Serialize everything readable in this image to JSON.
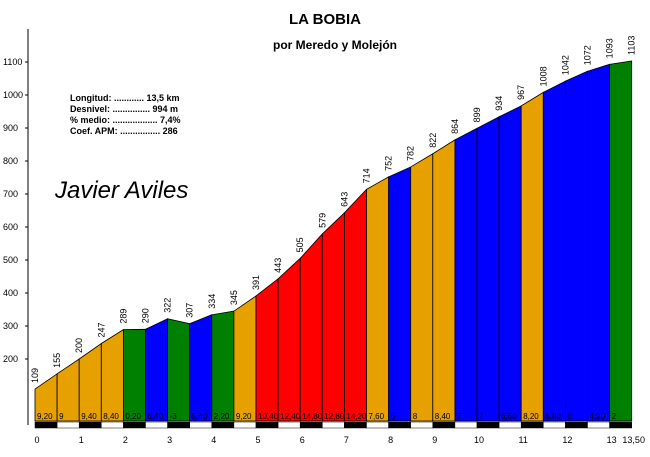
{
  "chart_data": {
    "type": "profile",
    "title": "LA BOBIA",
    "subtitle": "por Meredo y Molejón",
    "x": [
      0,
      0.5,
      1,
      1.5,
      2,
      2.5,
      3,
      3.5,
      4,
      4.5,
      5,
      5.5,
      6,
      6.5,
      7,
      7.5,
      8,
      8.5,
      9,
      9.5,
      10,
      10.5,
      11,
      11.5,
      12,
      12.5,
      13,
      13.5
    ],
    "values": [
      109,
      155,
      200,
      247,
      289,
      290,
      322,
      307,
      334,
      345,
      391,
      443,
      505,
      579,
      643,
      714,
      752,
      782,
      822,
      864,
      899,
      934,
      967,
      1008,
      1042,
      1072,
      1093,
      1103
    ],
    "gradients": {
      "values": [
        9.2,
        9,
        9.4,
        8.4,
        0.2,
        6.4,
        -3,
        5.4,
        2.2,
        9.2,
        10.4,
        12.4,
        14.8,
        12.8,
        14.2,
        7.6,
        6,
        8,
        8.4,
        7,
        7,
        6.6,
        8.2,
        6.8,
        6,
        4.2,
        2
      ],
      "value_labels": [
        "9,20",
        "9",
        "9,40",
        "8,40",
        "0,20",
        "6,40",
        "-3",
        "5,40",
        "2,20",
        "9,20",
        "10,40",
        "12,40",
        "14,80",
        "12,80",
        "14,20",
        "7,60",
        "6",
        "8",
        "8,40",
        "7",
        "7",
        "6,60",
        "8,20",
        "6,80",
        "6",
        "4,20",
        "2"
      ],
      "colors": [
        "#e6a000",
        "#e6a000",
        "#e6a000",
        "#e6a000",
        "#008000",
        "#0000ff",
        "#008000",
        "#0000ff",
        "#008000",
        "#e6a000",
        "#ff0000",
        "#ff0000",
        "#ff0000",
        "#ff0000",
        "#ff0000",
        "#e6a000",
        "#0000ff",
        "#e6a000",
        "#e6a000",
        "#0000ff",
        "#0000ff",
        "#0000ff",
        "#e6a000",
        "#0000ff",
        "#0000ff",
        "#0000ff",
        "#008000"
      ]
    },
    "xlim": [
      0,
      13.5
    ],
    "xticks": [
      0,
      1,
      2,
      3,
      4,
      5,
      6,
      7,
      8,
      9,
      10,
      11,
      12,
      13,
      {
        "value": 13.5,
        "label": "13,50"
      }
    ],
    "ylim": [
      0,
      1200
    ],
    "yticks": [
      200,
      300,
      400,
      500,
      600,
      700,
      800,
      900,
      1000,
      1100
    ],
    "stats": [
      "Longitud: ............ 13,5 km",
      "Desnivel: ............... 994 m",
      "% medio: .................. 7,4%",
      "Coef. APM: ................ 286"
    ],
    "author": "Javier Aviles"
  }
}
